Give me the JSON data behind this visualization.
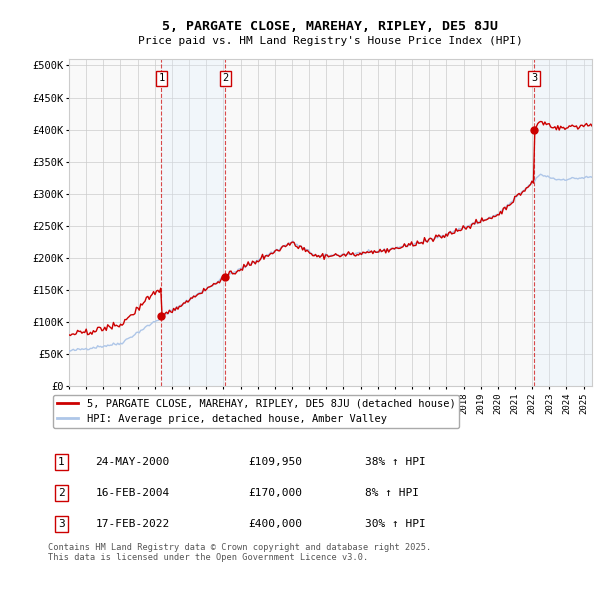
{
  "title": "5, PARGATE CLOSE, MAREHAY, RIPLEY, DE5 8JU",
  "subtitle": "Price paid vs. HM Land Registry's House Price Index (HPI)",
  "ylabel_ticks": [
    "£0",
    "£50K",
    "£100K",
    "£150K",
    "£200K",
    "£250K",
    "£300K",
    "£350K",
    "£400K",
    "£450K",
    "£500K"
  ],
  "ytick_values": [
    0,
    50000,
    100000,
    150000,
    200000,
    250000,
    300000,
    350000,
    400000,
    450000,
    500000
  ],
  "ylim": [
    0,
    510000
  ],
  "xlim_start": 1995.0,
  "xlim_end": 2025.5,
  "transaction_dates": [
    2000.39,
    2004.12,
    2022.12
  ],
  "transaction_prices": [
    109950,
    170000,
    400000
  ],
  "transaction_labels": [
    "1",
    "2",
    "3"
  ],
  "transaction_hpi_pct": [
    "38% ↑ HPI",
    "8% ↑ HPI",
    "30% ↑ HPI"
  ],
  "transaction_date_strs": [
    "24-MAY-2000",
    "16-FEB-2004",
    "17-FEB-2022"
  ],
  "transaction_price_strs": [
    "£109,950",
    "£170,000",
    "£400,000"
  ],
  "hpi_line_color": "#aec6e8",
  "price_line_color": "#cc0000",
  "shade_color": "#ddeeff",
  "grid_color": "#cccccc",
  "legend1_label": "5, PARGATE CLOSE, MAREHAY, RIPLEY, DE5 8JU (detached house)",
  "legend2_label": "HPI: Average price, detached house, Amber Valley",
  "footer_text": "Contains HM Land Registry data © Crown copyright and database right 2025.\nThis data is licensed under the Open Government Licence v3.0.",
  "background_color": "#ffffff",
  "plot_bg_color": "#f9f9f9"
}
